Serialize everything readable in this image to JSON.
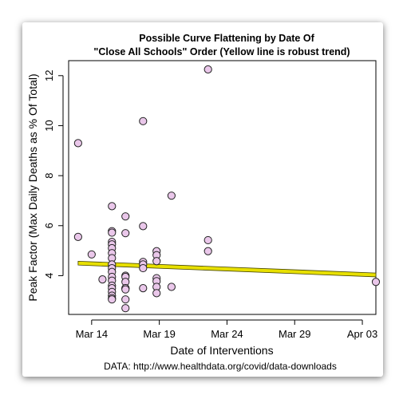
{
  "chart_data": {
    "type": "scatter",
    "title": "Possible Curve Flattening by Date Of",
    "subtitle": "\"Close All Schools\" Order (Yellow line is robust trend)",
    "xlabel": "Date of Interventions",
    "ylabel": "Peak Factor (Max Daily Deaths as % Of Total)",
    "caption": "DATA: http://www.healthdata.org/covid/data-downloads",
    "x_tick_labels": [
      "Mar 14",
      "Mar 19",
      "Mar 24",
      "Mar 29",
      "Apr 03"
    ],
    "x_ticks": [
      14,
      19,
      24,
      29,
      34
    ],
    "y_ticks": [
      4,
      6,
      8,
      10,
      12
    ],
    "y_tick_labels": [
      "4",
      "6",
      "8",
      "10",
      "12"
    ],
    "xlim": [
      12.3,
      35.0
    ],
    "ylim": [
      2.45,
      12.6
    ],
    "grid": false,
    "colors": {
      "point_fill": "#eac7ea",
      "point_stroke": "#222222",
      "trend_fill": "#e8e000",
      "trend_stroke": "#444400"
    },
    "trend": {
      "x": [
        13.0,
        35.0
      ],
      "y": [
        4.5,
        4.03
      ]
    },
    "x": [
      13,
      13,
      14,
      14.8,
      15.5,
      15.5,
      15.5,
      15.5,
      15.5,
      15.5,
      15.5,
      15.5,
      15.5,
      15.5,
      15.5,
      15.5,
      15.5,
      15.5,
      15.5,
      15.5,
      15.5,
      15.5,
      15.5,
      16.5,
      16.5,
      16.5,
      16.5,
      16.5,
      16.5,
      16.5,
      16.5,
      16.5,
      16.5,
      17.8,
      17.8,
      17.8,
      17.8,
      17.8,
      17.8,
      18.8,
      18.8,
      18.8,
      18.8,
      18.8,
      18.8,
      18.8,
      19.9,
      19.9,
      22.6,
      22.6,
      22.6,
      35.0
    ],
    "y": [
      9.3,
      5.55,
      4.85,
      3.85,
      6.78,
      5.78,
      5.72,
      5.35,
      5.25,
      5.1,
      4.9,
      4.7,
      4.45,
      4.3,
      4.15,
      3.95,
      3.8,
      3.6,
      3.5,
      3.35,
      3.2,
      3.1,
      3.05,
      6.37,
      5.7,
      4.0,
      3.95,
      3.75,
      3.5,
      3.5,
      3.45,
      3.05,
      2.7,
      10.18,
      5.98,
      4.55,
      4.45,
      4.3,
      3.5,
      4.98,
      4.82,
      4.58,
      3.9,
      3.78,
      3.55,
      3.3,
      7.2,
      3.55,
      12.25,
      5.42,
      4.98,
      3.75
    ]
  }
}
